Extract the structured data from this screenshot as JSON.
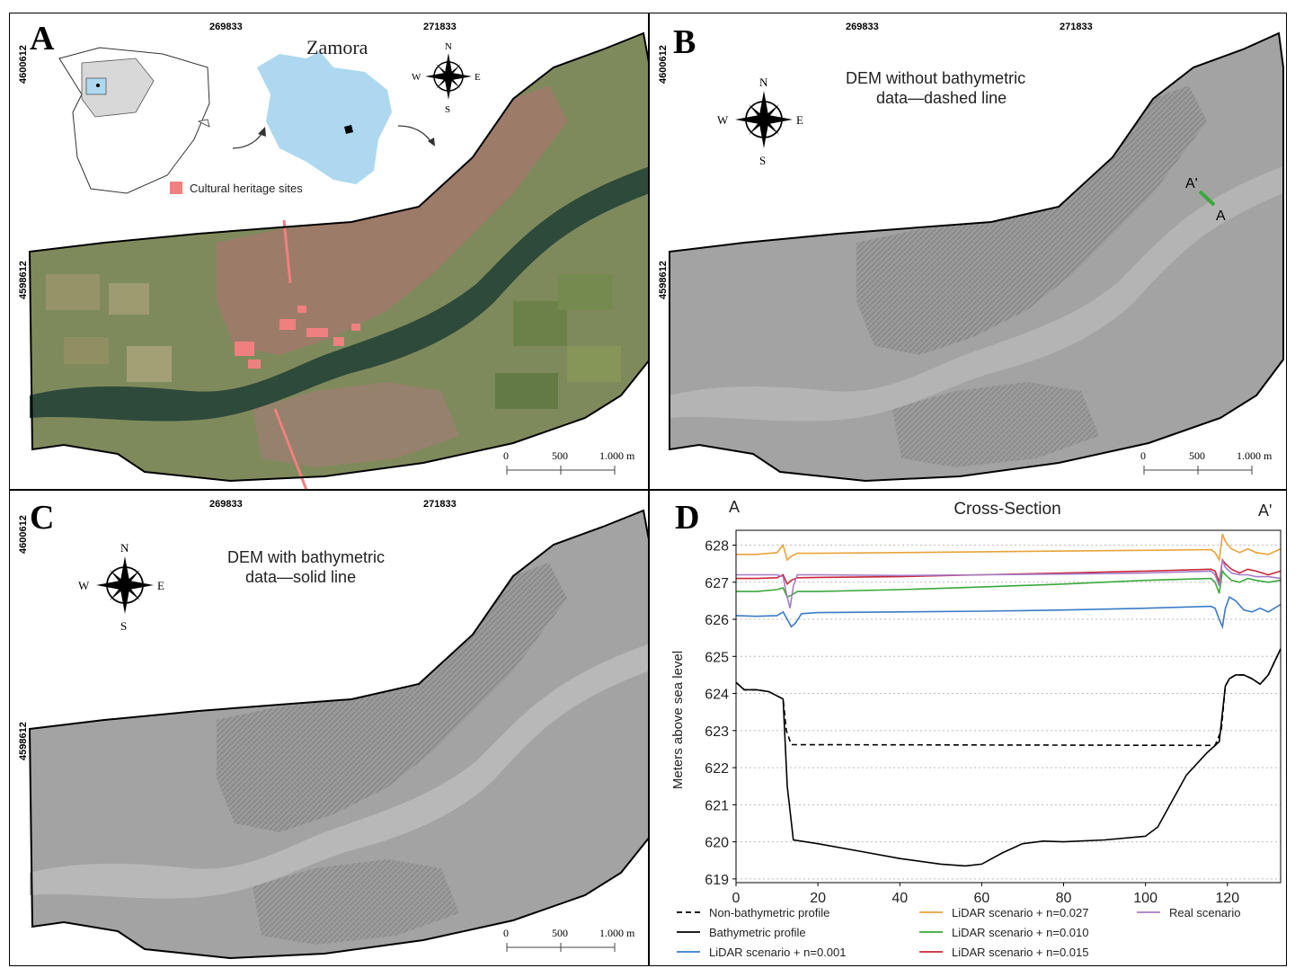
{
  "panels": {
    "a": {
      "letter": "A",
      "coord_top_1": "269833",
      "coord_top_2": "271833",
      "coord_left_1": "4600612",
      "coord_left_2": "4598612",
      "inset_label": "Zamora",
      "legend_label": "Cultural heritage sites",
      "scale_0": "0",
      "scale_500": "500",
      "scale_1000": "1.000 m",
      "compass": {
        "n": "N",
        "s": "S",
        "e": "E",
        "w": "W"
      }
    },
    "b": {
      "letter": "B",
      "coord_top_1": "269833",
      "coord_top_2": "271833",
      "coord_left_1": "4600612",
      "coord_left_2": "4598612",
      "title_line1": "DEM without bathymetric",
      "title_line2": "data—dashed line",
      "section_start": "A'",
      "section_end": "A",
      "scale_0": "0",
      "scale_500": "500",
      "scale_1000": "1.000 m",
      "compass": {
        "n": "N",
        "s": "S",
        "e": "E",
        "w": "W"
      }
    },
    "c": {
      "letter": "C",
      "coord_top_1": "269833",
      "coord_top_2": "271833",
      "coord_left_1": "4600612",
      "coord_left_2": "4598612",
      "title_line1": "DEM with bathymetric",
      "title_line2": "data—solid line",
      "scale_0": "0",
      "scale_500": "500",
      "scale_1000": "1.000 m",
      "compass": {
        "n": "N",
        "s": "S",
        "e": "E",
        "w": "W"
      }
    },
    "d": {
      "letter": "D",
      "label_left": "A",
      "label_right": "A'"
    }
  },
  "colors": {
    "heritage": "#f08080",
    "inset_fill": "#add8f0",
    "river": "#2e4a3a",
    "orange": "#e8a33a",
    "green": "#3aa83a",
    "blue": "#3a7bc8",
    "red": "#c8283a",
    "purple": "#a57bc8"
  },
  "chart_data": {
    "type": "line",
    "title": "Cross-Section",
    "xlabel": "",
    "ylabel": "Meters above sea level",
    "xlim": [
      0,
      133
    ],
    "ylim": [
      618.9,
      628.4
    ],
    "xticks": [
      0,
      20,
      40,
      60,
      80,
      100,
      120
    ],
    "yticks": [
      619,
      620,
      621,
      622,
      623,
      624,
      625,
      626,
      627,
      628
    ],
    "grid": "horizontal dotted",
    "legend_position": "bottom",
    "series": [
      {
        "name": "Non-bathymetric profile",
        "color": "#000000",
        "dash": true,
        "x": [
          0,
          2,
          5,
          8,
          11.5,
          12.3,
          13.5,
          117,
          118.5,
          119.5,
          120.5,
          122,
          124,
          126,
          128,
          130,
          133
        ],
        "y": [
          624.3,
          624.1,
          624.1,
          624.05,
          623.85,
          623.0,
          622.62,
          622.6,
          623.0,
          624.2,
          624.4,
          624.5,
          624.5,
          624.4,
          624.25,
          624.5,
          625.2
        ]
      },
      {
        "name": "Bathymetric profile",
        "color": "#000000",
        "dash": false,
        "x": [
          0,
          2,
          5,
          8,
          11.5,
          12.5,
          14,
          20,
          30,
          40,
          50,
          56,
          60,
          65,
          70,
          75,
          80,
          90,
          100,
          103,
          106,
          110,
          115,
          118,
          119.5,
          120.5,
          122,
          124,
          126,
          128,
          130,
          133
        ],
        "y": [
          624.3,
          624.1,
          624.1,
          624.05,
          623.85,
          621.5,
          620.05,
          619.95,
          619.75,
          619.55,
          619.4,
          619.35,
          619.4,
          619.7,
          619.95,
          620.02,
          620.0,
          620.05,
          620.15,
          620.4,
          621.0,
          621.8,
          622.4,
          622.7,
          624.2,
          624.4,
          624.5,
          624.5,
          624.4,
          624.25,
          624.5,
          625.2
        ]
      },
      {
        "name": "LiDAR scenario + n=0.001",
        "color": "#3a7bc8",
        "dash": false,
        "x": [
          0,
          5,
          10,
          11.5,
          12.5,
          13.5,
          14.5,
          16,
          20,
          40,
          60,
          80,
          100,
          116,
          117,
          118,
          118.8,
          119.5,
          120.5,
          122,
          124,
          126,
          128,
          130,
          133
        ],
        "y": [
          626.1,
          626.08,
          626.1,
          626.2,
          626.0,
          625.8,
          625.9,
          626.15,
          626.18,
          626.2,
          626.22,
          626.25,
          626.3,
          626.35,
          626.3,
          626.0,
          625.8,
          626.3,
          626.6,
          626.5,
          626.25,
          626.2,
          626.3,
          626.2,
          626.4
        ]
      },
      {
        "name": "LiDAR scenario + n=0.027",
        "color": "#e8a33a",
        "dash": false,
        "x": [
          0,
          5,
          10,
          11.5,
          12.5,
          13.5,
          15,
          20,
          40,
          60,
          80,
          100,
          116,
          117,
          118,
          118.8,
          119.5,
          121,
          123,
          125,
          127,
          130,
          133
        ],
        "y": [
          627.75,
          627.75,
          627.8,
          628.0,
          627.6,
          627.7,
          627.78,
          627.78,
          627.8,
          627.82,
          627.84,
          627.86,
          627.88,
          627.8,
          627.6,
          628.3,
          628.1,
          627.9,
          627.8,
          627.9,
          627.8,
          627.75,
          627.9
        ]
      },
      {
        "name": "LiDAR scenario + n=0.010",
        "color": "#3aa83a",
        "dash": false,
        "x": [
          0,
          5,
          10,
          11.5,
          12.5,
          13.5,
          15,
          20,
          40,
          60,
          80,
          100,
          116,
          117,
          118,
          118.8,
          119.5,
          121,
          123,
          125,
          127,
          130,
          133
        ],
        "y": [
          626.75,
          626.75,
          626.8,
          626.85,
          626.6,
          626.65,
          626.75,
          626.75,
          626.8,
          626.87,
          626.95,
          627.05,
          627.1,
          627.0,
          626.7,
          627.3,
          627.2,
          627.05,
          627.0,
          627.1,
          627.05,
          627.0,
          627.05
        ]
      },
      {
        "name": "LiDAR scenario + n=0.015",
        "color": "#c8283a",
        "dash": false,
        "x": [
          0,
          5,
          10,
          11.5,
          12.5,
          13.5,
          15,
          20,
          40,
          60,
          80,
          100,
          116,
          117,
          118,
          118.8,
          119.5,
          121,
          123,
          125,
          127,
          130,
          133
        ],
        "y": [
          627.1,
          627.1,
          627.12,
          627.2,
          626.95,
          627.05,
          627.12,
          627.13,
          627.15,
          627.2,
          627.25,
          627.3,
          627.35,
          627.3,
          627.0,
          627.6,
          627.5,
          627.35,
          627.25,
          627.35,
          627.3,
          627.2,
          627.3
        ]
      },
      {
        "name": "Real scenario",
        "color": "#a57bc8",
        "dash": false,
        "x": [
          0,
          5,
          10,
          11.5,
          12.3,
          13.2,
          14,
          15,
          20,
          40,
          60,
          80,
          100,
          116,
          117,
          118,
          118.8,
          119.5,
          121,
          123,
          125,
          127,
          130,
          133
        ],
        "y": [
          627.2,
          627.2,
          627.2,
          627.15,
          626.7,
          626.3,
          626.9,
          627.2,
          627.2,
          627.18,
          627.2,
          627.22,
          627.25,
          627.3,
          627.2,
          626.9,
          627.6,
          627.4,
          627.25,
          627.2,
          627.2,
          627.15,
          627.15,
          627.1
        ]
      }
    ]
  }
}
